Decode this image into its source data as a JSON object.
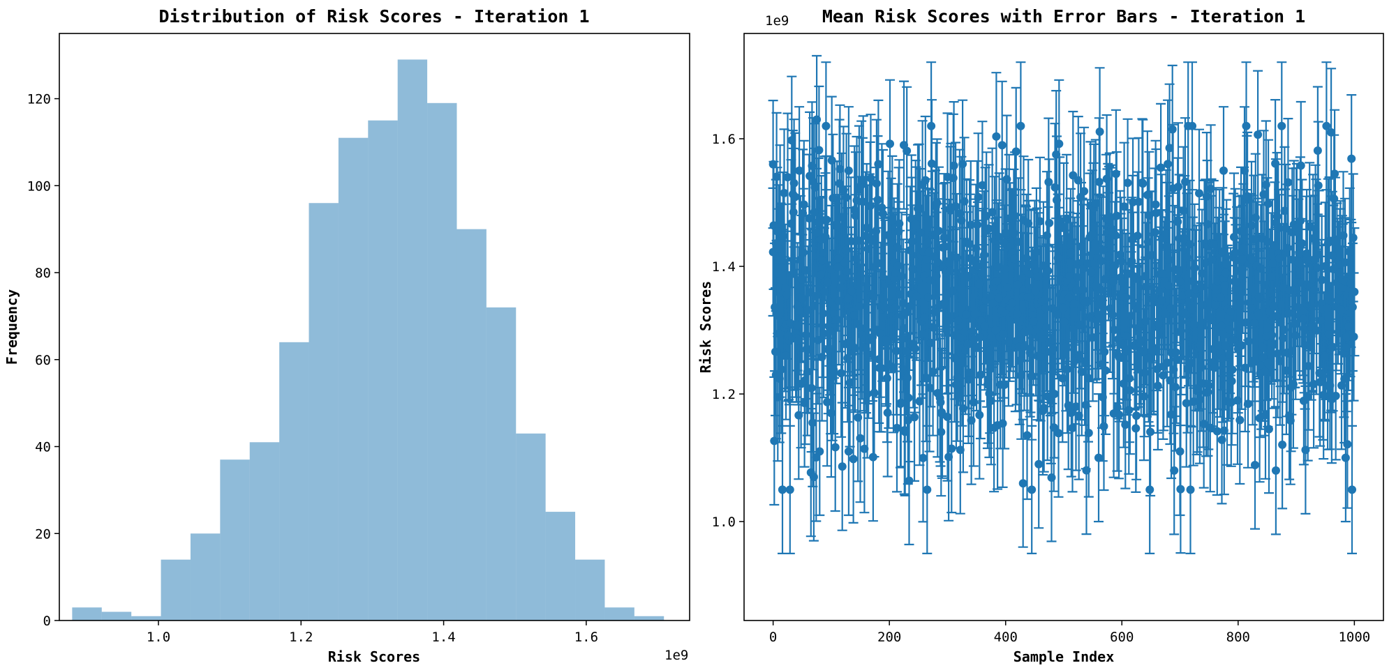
{
  "chart_data": [
    {
      "type": "bar",
      "subtype": "histogram",
      "title": "Distribution of Risk Scores - Iteration 1",
      "xlabel": "Risk Scores",
      "ylabel": "Frequency",
      "x_offset_label": "1e9",
      "xlim": [
        0.861,
        1.745
      ],
      "ylim": [
        0,
        135
      ],
      "color": "#1f77b4",
      "alpha": 0.5,
      "bin_edges": [
        0.879,
        0.9205,
        0.962,
        1.0035,
        1.045,
        1.0865,
        1.128,
        1.1695,
        1.211,
        1.2525,
        1.294,
        1.3355,
        1.377,
        1.4185,
        1.46,
        1.5015,
        1.543,
        1.5845,
        1.626,
        1.6675,
        1.709
      ],
      "values": [
        3,
        2,
        1,
        14,
        20,
        37,
        41,
        64,
        96,
        111,
        115,
        129,
        119,
        90,
        72,
        43,
        25,
        14,
        3,
        1
      ],
      "xticks": [
        1.0,
        1.2,
        1.4,
        1.6
      ],
      "xtick_labels": [
        "1.0",
        "1.2",
        "1.4",
        "1.6"
      ],
      "yticks": [
        0,
        20,
        40,
        60,
        80,
        100,
        120
      ],
      "ytick_labels": [
        "0",
        "20",
        "40",
        "60",
        "80",
        "100",
        "120"
      ]
    },
    {
      "type": "scatter",
      "subtype": "errorbar",
      "title": "Mean Risk Scores with Error Bars - Iteration 1",
      "xlabel": "Sample Index",
      "ylabel": "Risk Scores",
      "y_offset_label": "1e9",
      "xlim": [
        -50,
        1050
      ],
      "ylim": [
        0.845,
        1.765
      ],
      "color": "#1f77b4",
      "n_points": 1000,
      "error_half_width": 0.1,
      "mean": 1.35,
      "std": 0.12,
      "sample_points": [
        {
          "x": 0,
          "y": 1.56
        },
        {
          "x": 5,
          "y": 1.23
        },
        {
          "x": 8,
          "y": 1.39
        },
        {
          "x": 12,
          "y": 1.49
        },
        {
          "x": 16,
          "y": 1.05
        },
        {
          "x": 45,
          "y": 1.55
        },
        {
          "x": 70,
          "y": 1.07
        },
        {
          "x": 75,
          "y": 1.63
        },
        {
          "x": 80,
          "y": 1.11
        },
        {
          "x": 100,
          "y": 1.17
        },
        {
          "x": 130,
          "y": 1.55
        },
        {
          "x": 130,
          "y": 1.11
        },
        {
          "x": 225,
          "y": 1.59
        },
        {
          "x": 300,
          "y": 1.54
        },
        {
          "x": 430,
          "y": 1.06
        },
        {
          "x": 445,
          "y": 1.05
        },
        {
          "x": 560,
          "y": 1.1
        },
        {
          "x": 690,
          "y": 1.08
        },
        {
          "x": 700,
          "y": 1.11
        },
        {
          "x": 775,
          "y": 1.55
        },
        {
          "x": 865,
          "y": 1.08
        },
        {
          "x": 960,
          "y": 1.61
        },
        {
          "x": 985,
          "y": 1.1
        },
        {
          "x": 1000,
          "y": 1.36
        }
      ],
      "xticks": [
        0,
        200,
        400,
        600,
        800,
        1000
      ],
      "xtick_labels": [
        "0",
        "200",
        "400",
        "600",
        "800",
        "1000"
      ],
      "yticks": [
        1.0,
        1.2,
        1.4,
        1.6
      ],
      "ytick_labels": [
        "1.0",
        "1.2",
        "1.4",
        "1.6"
      ]
    }
  ]
}
